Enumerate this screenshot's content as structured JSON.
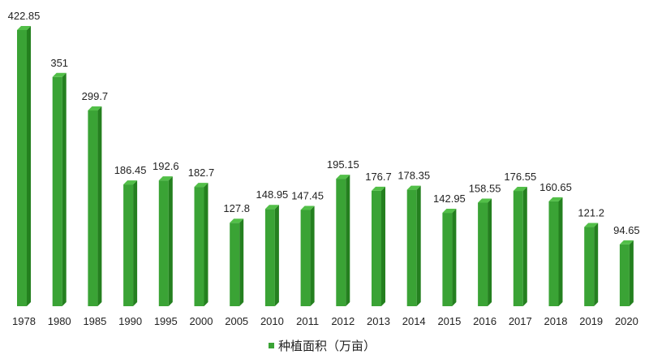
{
  "chart_data": {
    "type": "bar",
    "categories": [
      "1978",
      "1980",
      "1985",
      "1990",
      "1995",
      "2000",
      "2005",
      "2010",
      "2011",
      "2012",
      "2013",
      "2014",
      "2015",
      "2016",
      "2017",
      "2018",
      "2019",
      "2020"
    ],
    "series": [
      {
        "name": "种植面积（万亩）",
        "values": [
          422.85,
          351,
          299.7,
          186.45,
          192.6,
          182.7,
          127.8,
          148.95,
          147.45,
          195.15,
          176.7,
          178.35,
          142.95,
          158.55,
          176.55,
          160.65,
          121.2,
          94.65
        ],
        "data_labels": [
          "422.85",
          "351",
          "299.7",
          "186.45",
          "192.6",
          "182.7",
          "127.8",
          "148.95",
          "147.45",
          "195.15",
          "176.7",
          "178.35",
          "142.95",
          "158.55",
          "176.55",
          "160.65",
          "121.2",
          "94.65"
        ]
      }
    ],
    "ylim": [
      0,
      422.85
    ],
    "grid": false,
    "legend_position": "bottom",
    "colors": {
      "bar_front": "#3aa335",
      "bar_side": "#24801f",
      "bar_top": "#52bf48"
    }
  }
}
